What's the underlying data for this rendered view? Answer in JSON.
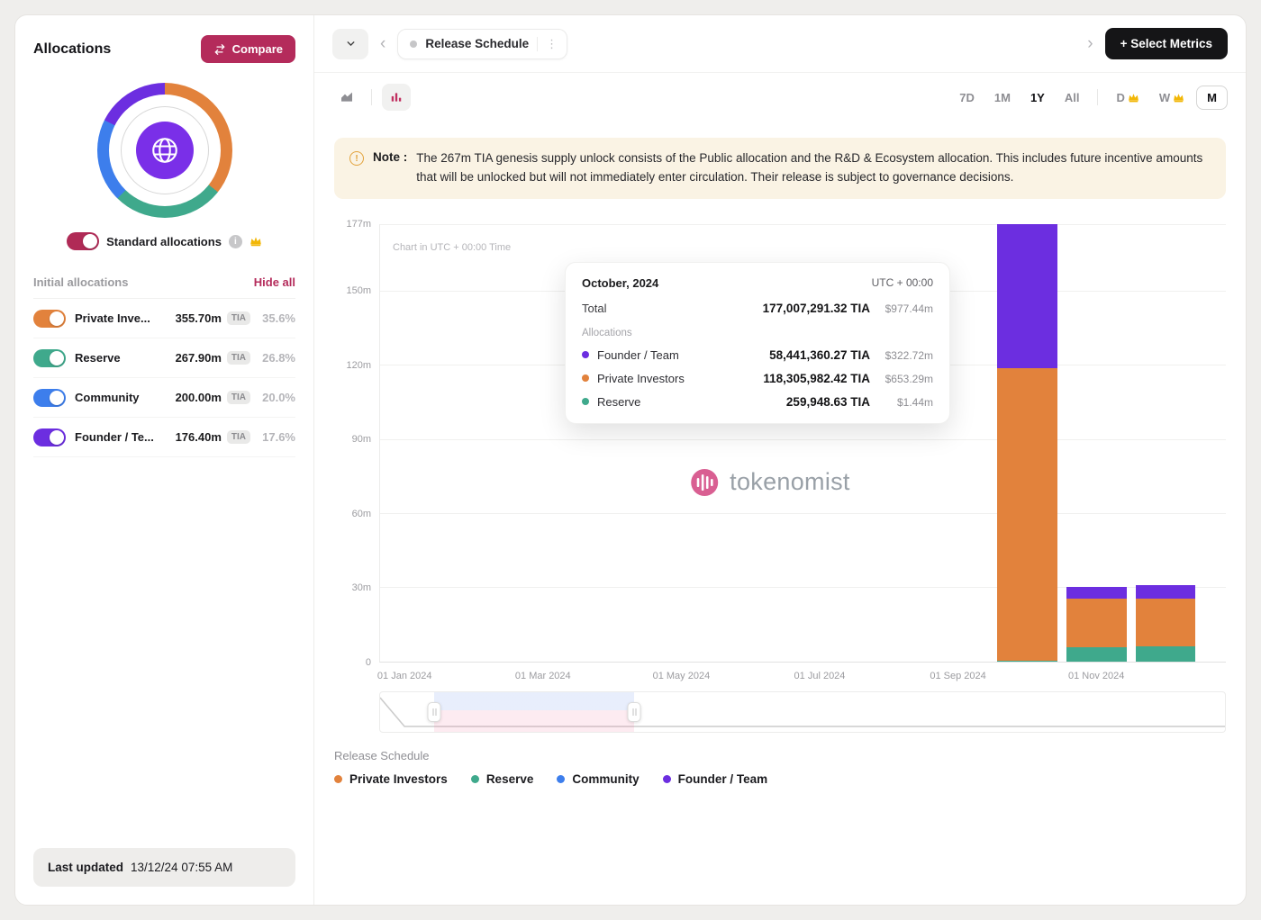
{
  "sidebar": {
    "title": "Allocations",
    "compare_label": "Compare",
    "standard_toggle_label": "Standard allocations",
    "initial_title": "Initial allocations",
    "hide_all": "Hide all",
    "allocations": [
      {
        "name": "Private Inve...",
        "amount": "355.70m",
        "unit": "TIA",
        "percent": "35.6%",
        "color": "#E2823C"
      },
      {
        "name": "Reserve",
        "amount": "267.90m",
        "unit": "TIA",
        "percent": "26.8%",
        "color": "#3FA98C"
      },
      {
        "name": "Community",
        "amount": "200.00m",
        "unit": "TIA",
        "percent": "20.0%",
        "color": "#3D7EEC"
      },
      {
        "name": "Founder / Te...",
        "amount": "176.40m",
        "unit": "TIA",
        "percent": "17.6%",
        "color": "#6C2EE0"
      }
    ],
    "last_updated_label": "Last updated",
    "last_updated_value": "13/12/24 07:55 AM"
  },
  "toolbar": {
    "metric_chip_label": "Release Schedule",
    "select_metrics_label": "+ Select Metrics",
    "ranges": [
      "7D",
      "1M",
      "1Y",
      "All"
    ],
    "active_range": "1Y",
    "granularities": [
      "D",
      "W",
      "M"
    ],
    "premium_granularities": [
      "D",
      "W"
    ],
    "active_granularity": "M"
  },
  "note": {
    "label": "Note :",
    "text": "The 267m TIA genesis supply unlock consists of the Public allocation and the R&D & Ecosystem allocation. This includes future incentive amounts that will be unlocked but will not immediately enter circulation. Their release is subject to governance decisions."
  },
  "chart_data": {
    "type": "bar",
    "stacked": true,
    "title": "Release Schedule",
    "note": "Chart in UTC + 00:00 Time",
    "categories": [
      "Jan 2024",
      "Feb 2024",
      "Mar 2024",
      "Apr 2024",
      "May 2024",
      "Jun 2024",
      "Jul 2024",
      "Aug 2024",
      "Sep 2024",
      "Oct 2024",
      "Nov 2024",
      "Dec 2024"
    ],
    "series": [
      {
        "name": "Reserve",
        "color": "#3FA98C",
        "values": [
          0,
          0,
          0,
          0,
          0,
          0,
          0,
          0,
          0,
          0.26,
          5.8,
          6.0
        ]
      },
      {
        "name": "Private Investors",
        "color": "#E2823C",
        "values": [
          0,
          0,
          0,
          0,
          0,
          0,
          0,
          0,
          0,
          118.31,
          19.5,
          19.5
        ]
      },
      {
        "name": "Founder / Team",
        "color": "#6C2EE0",
        "values": [
          0,
          0,
          0,
          0,
          0,
          0,
          0,
          0,
          0,
          58.44,
          4.8,
          5.5
        ]
      },
      {
        "name": "Community",
        "color": "#3D7EEC",
        "values": [
          0,
          0,
          0,
          0,
          0,
          0,
          0,
          0,
          0,
          0,
          0,
          0
        ]
      }
    ],
    "unit": "million TIA",
    "ylim": [
      0,
      177
    ],
    "yticks": [
      0,
      30,
      60,
      90,
      120,
      150,
      177
    ],
    "ytick_labels": [
      "0",
      "30m",
      "60m",
      "90m",
      "120m",
      "150m",
      "177m"
    ],
    "xtick_positions": [
      0,
      2,
      4,
      6,
      8,
      10
    ],
    "xtick_labels": [
      "01 Jan 2024",
      "01 Mar 2024",
      "01 May 2024",
      "01 Jul 2024",
      "01 Sep 2024",
      "01 Nov 2024"
    ],
    "grid": true,
    "legend_position": "bottom"
  },
  "tooltip": {
    "date": "October, 2024",
    "timezone": "UTC + 00:00",
    "total_label": "Total",
    "total_value": "177,007,291.32 TIA",
    "total_usd": "$977.44m",
    "allocations_label": "Allocations",
    "rows": [
      {
        "name": "Founder / Team",
        "color": "#6C2EE0",
        "value": "58,441,360.27 TIA",
        "usd": "$322.72m"
      },
      {
        "name": "Private Investors",
        "color": "#E2823C",
        "value": "118,305,982.42 TIA",
        "usd": "$653.29m"
      },
      {
        "name": "Reserve",
        "color": "#3FA98C",
        "value": "259,948.63 TIA",
        "usd": "$1.44m"
      }
    ]
  },
  "watermark": {
    "text": "tokenomist"
  },
  "legend": {
    "title": "Release Schedule",
    "items": [
      {
        "label": "Private Investors",
        "color": "#E2823C"
      },
      {
        "label": "Reserve",
        "color": "#3FA98C"
      },
      {
        "label": "Community",
        "color": "#3D7EEC"
      },
      {
        "label": "Founder / Team",
        "color": "#6C2EE0"
      }
    ]
  },
  "colors": {
    "accent": "#B42B5B",
    "note_bg": "#FAF3E4",
    "premium_gold": "#F2B707"
  }
}
